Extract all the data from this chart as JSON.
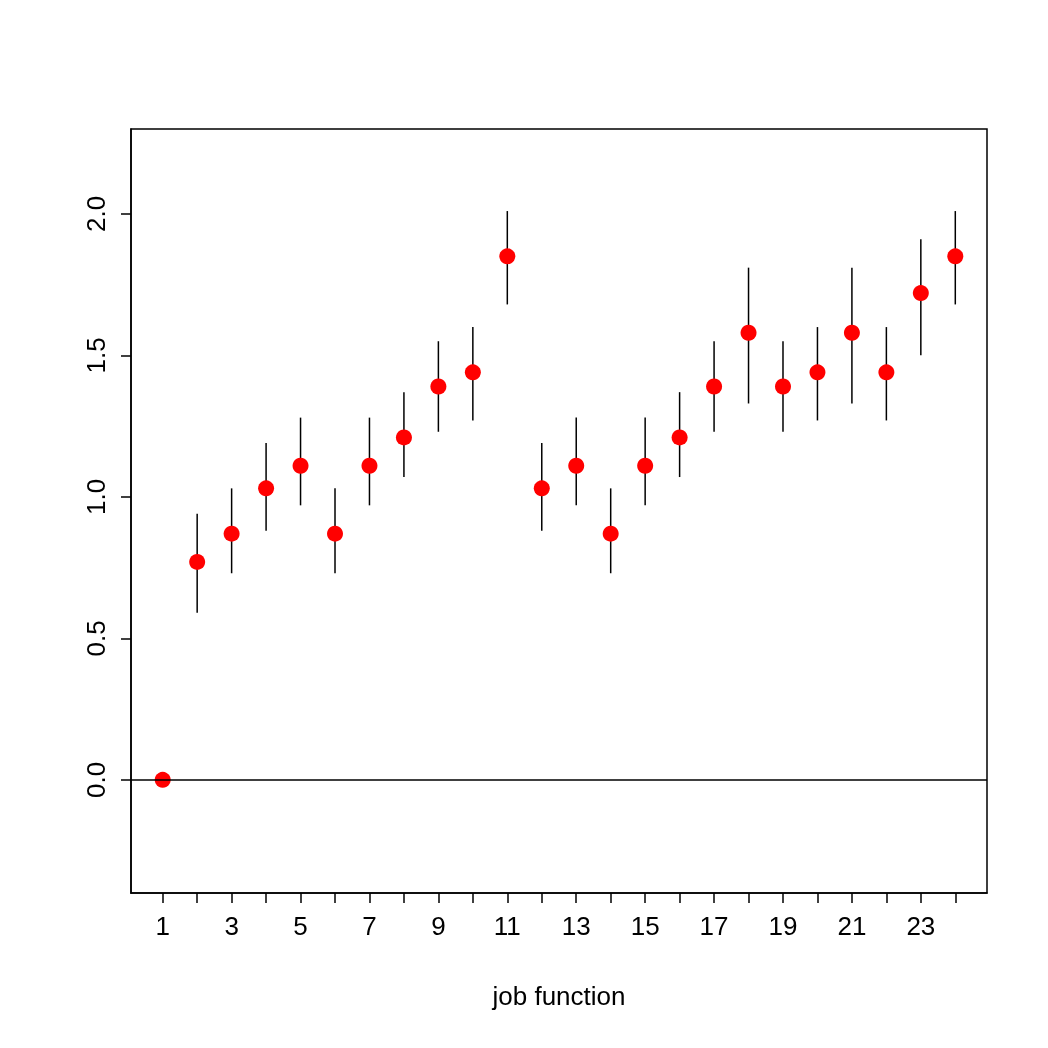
{
  "chart_data": {
    "type": "scatter",
    "xlabel": "job function",
    "x": [
      1,
      2,
      3,
      4,
      5,
      6,
      7,
      8,
      9,
      10,
      11,
      12,
      13,
      14,
      15,
      16,
      17,
      18,
      19,
      20,
      21,
      22,
      23,
      24
    ],
    "values": [
      0,
      0.77,
      0.87,
      1.03,
      1.11,
      0.87,
      1.11,
      1.21,
      1.39,
      1.44,
      1.85,
      1.03,
      1.11,
      0.87,
      1.11,
      1.21,
      1.39,
      1.58,
      1.39,
      1.44,
      1.58,
      1.44,
      1.72,
      1.85
    ],
    "errors": [
      null,
      [
        0.59,
        0.94
      ],
      [
        0.73,
        1.03
      ],
      [
        0.88,
        1.19
      ],
      [
        0.97,
        1.28
      ],
      [
        0.73,
        1.03
      ],
      [
        0.97,
        1.28
      ],
      [
        1.07,
        1.37
      ],
      [
        1.23,
        1.55
      ],
      [
        1.27,
        1.6
      ],
      [
        1.68,
        2.01
      ],
      [
        0.88,
        1.19
      ],
      [
        0.97,
        1.28
      ],
      [
        0.73,
        1.03
      ],
      [
        0.97,
        1.28
      ],
      [
        1.07,
        1.37
      ],
      [
        1.23,
        1.55
      ],
      [
        1.33,
        1.81
      ],
      [
        1.23,
        1.55
      ],
      [
        1.27,
        1.6
      ],
      [
        1.33,
        1.81
      ],
      [
        1.27,
        1.6
      ],
      [
        1.5,
        1.91
      ],
      [
        1.68,
        2.01
      ]
    ],
    "color": "#ff0000",
    "marker": "circle",
    "xlim": [
      0.08,
      24.92
    ],
    "xticks": [
      1,
      {
        "value": 2,
        "label": null
      },
      3,
      {
        "value": 4,
        "label": null
      },
      5,
      {
        "value": 6,
        "label": null
      },
      7,
      {
        "value": 8,
        "label": null
      },
      9,
      {
        "value": 10,
        "label": null
      },
      11,
      {
        "value": 12,
        "label": null
      },
      13,
      {
        "value": 14,
        "label": null
      },
      15,
      {
        "value": 16,
        "label": null
      },
      17,
      {
        "value": 18,
        "label": null
      },
      19,
      {
        "value": 20,
        "label": null
      },
      21,
      {
        "value": 22,
        "label": null
      },
      23,
      {
        "value": 24,
        "label": null
      }
    ],
    "ylim": [
      -0.4,
      2.3
    ],
    "yticks": [
      {
        "value": 0,
        "label": "0.0"
      },
      {
        "value": 0.5,
        "label": "0.5"
      },
      {
        "value": 1,
        "label": "1.0"
      },
      {
        "value": 1.5,
        "label": "1.5"
      },
      {
        "value": 2,
        "label": "2.0"
      }
    ],
    "ref_lines": [
      {
        "axis": "y",
        "value": 0,
        "color": "#000000",
        "line_style": "solid"
      }
    ],
    "grid": false
  }
}
